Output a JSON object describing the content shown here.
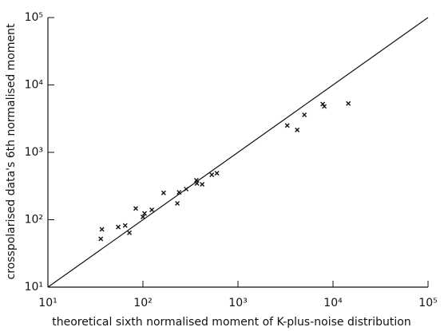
{
  "chart_data": {
    "type": "scatter",
    "x_label": "theoretical sixth normalised moment of K-plus-noise distribution",
    "y_label": "crosspolarised data's 6th normalised moment",
    "log_x": true,
    "log_y": true,
    "color": "#111111",
    "xlim": [
      10,
      100000
    ],
    "ylim": [
      10,
      100000
    ],
    "xticks": [
      {
        "value": 10,
        "label": "10¹"
      },
      {
        "value": 100,
        "label": "10²"
      },
      {
        "value": 1000,
        "label": "10³"
      },
      {
        "value": 10000,
        "label": "10⁴"
      },
      {
        "value": 100000,
        "label": "10⁵"
      }
    ],
    "yticks": [
      {
        "value": 10,
        "label": "10¹"
      },
      {
        "value": 100,
        "label": "10²"
      },
      {
        "value": 1000,
        "label": "10³"
      },
      {
        "value": 10000,
        "label": "10⁴"
      },
      {
        "value": 100000,
        "label": "10⁵"
      }
    ],
    "x": [
      36,
      37,
      55,
      65,
      72,
      84,
      100,
      104,
      124,
      165,
      230,
      240,
      285,
      365,
      370,
      420,
      530,
      600,
      3300,
      4200,
      5000,
      7800,
      8100,
      14500
    ],
    "values": [
      52,
      72,
      78,
      82,
      64,
      147,
      110,
      124,
      140,
      250,
      175,
      255,
      285,
      385,
      345,
      335,
      465,
      490,
      2500,
      2150,
      3600,
      5200,
      4800,
      5300
    ]
  }
}
